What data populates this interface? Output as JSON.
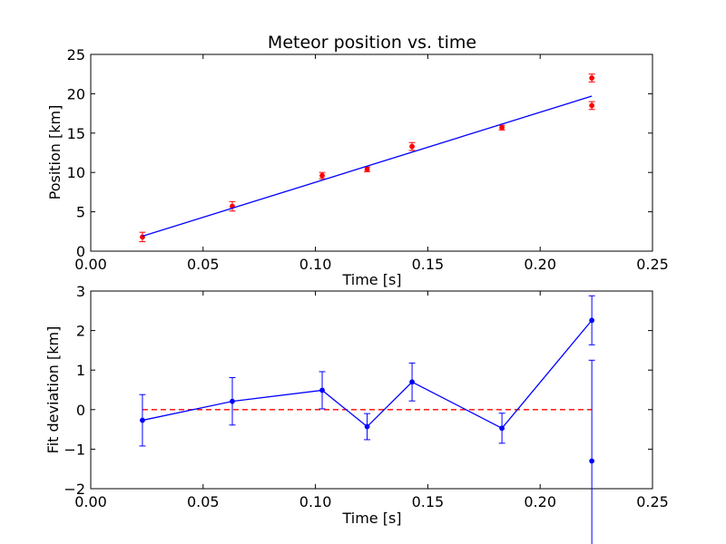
{
  "figure": {
    "title": "Meteor position vs. time"
  },
  "colors": {
    "fit_line": "#0000ff",
    "measurements": "#ff0000",
    "deviation": "#0000ff",
    "zero_line": "#ff0000",
    "axes": "#000000"
  },
  "chart_data": [
    {
      "type": "scatter",
      "title": "Meteor position vs. time",
      "xlabel": "Time [s]",
      "ylabel": "Position [km]",
      "xlim": [
        0,
        0.25
      ],
      "ylim": [
        0,
        25
      ],
      "xticks": [
        "0.00",
        "0.05",
        "0.10",
        "0.15",
        "0.20",
        "0.25"
      ],
      "yticks": [
        "0",
        "5",
        "10",
        "15",
        "20",
        "25"
      ],
      "grid": false,
      "series": [
        {
          "kind": "errorbar",
          "color": "#ff0000",
          "points": [
            {
              "x": 0.023,
              "y": 1.8,
              "err": 0.6
            },
            {
              "x": 0.063,
              "y": 5.7,
              "err": 0.6
            },
            {
              "x": 0.103,
              "y": 9.6,
              "err": 0.4
            },
            {
              "x": 0.123,
              "y": 10.4,
              "err": 0.3
            },
            {
              "x": 0.143,
              "y": 13.3,
              "err": 0.5
            },
            {
              "x": 0.183,
              "y": 15.7,
              "err": 0.3
            },
            {
              "x": 0.223,
              "y": 22.0,
              "err": 0.5
            },
            {
              "x": 0.223,
              "y": 18.5,
              "err": 0.5
            }
          ]
        },
        {
          "kind": "line",
          "color": "#0000ff",
          "points": [
            {
              "x": 0.023,
              "y": 1.9
            },
            {
              "x": 0.223,
              "y": 19.7
            }
          ]
        }
      ]
    },
    {
      "type": "line",
      "xlabel": "Time [s]",
      "ylabel": "Fit deviation [km]",
      "xlim": [
        0,
        0.25
      ],
      "ylim": [
        -2,
        3
      ],
      "xticks": [
        "0.00",
        "0.05",
        "0.10",
        "0.15",
        "0.20",
        "0.25"
      ],
      "yticks": [
        "−2",
        "−1",
        "0",
        "1",
        "2",
        "3"
      ],
      "grid": false,
      "series": [
        {
          "kind": "hline",
          "color": "#ff0000",
          "dashed": true,
          "y": 0,
          "x_range": [
            0.023,
            0.223
          ]
        },
        {
          "kind": "errorbar-line",
          "color": "#0000ff",
          "points": [
            {
              "x": 0.023,
              "y": -0.27,
              "err": 0.65
            },
            {
              "x": 0.063,
              "y": 0.21,
              "err": 0.6
            },
            {
              "x": 0.103,
              "y": 0.49,
              "err": 0.47
            },
            {
              "x": 0.123,
              "y": -0.43,
              "err": 0.33
            },
            {
              "x": 0.143,
              "y": 0.7,
              "err": 0.48
            },
            {
              "x": 0.183,
              "y": -0.47,
              "err": 0.38
            },
            {
              "x": 0.223,
              "y": 2.26,
              "err": 0.62
            },
            {
              "x": 0.223,
              "y": -1.3,
              "err": 2.55
            }
          ]
        }
      ]
    }
  ]
}
